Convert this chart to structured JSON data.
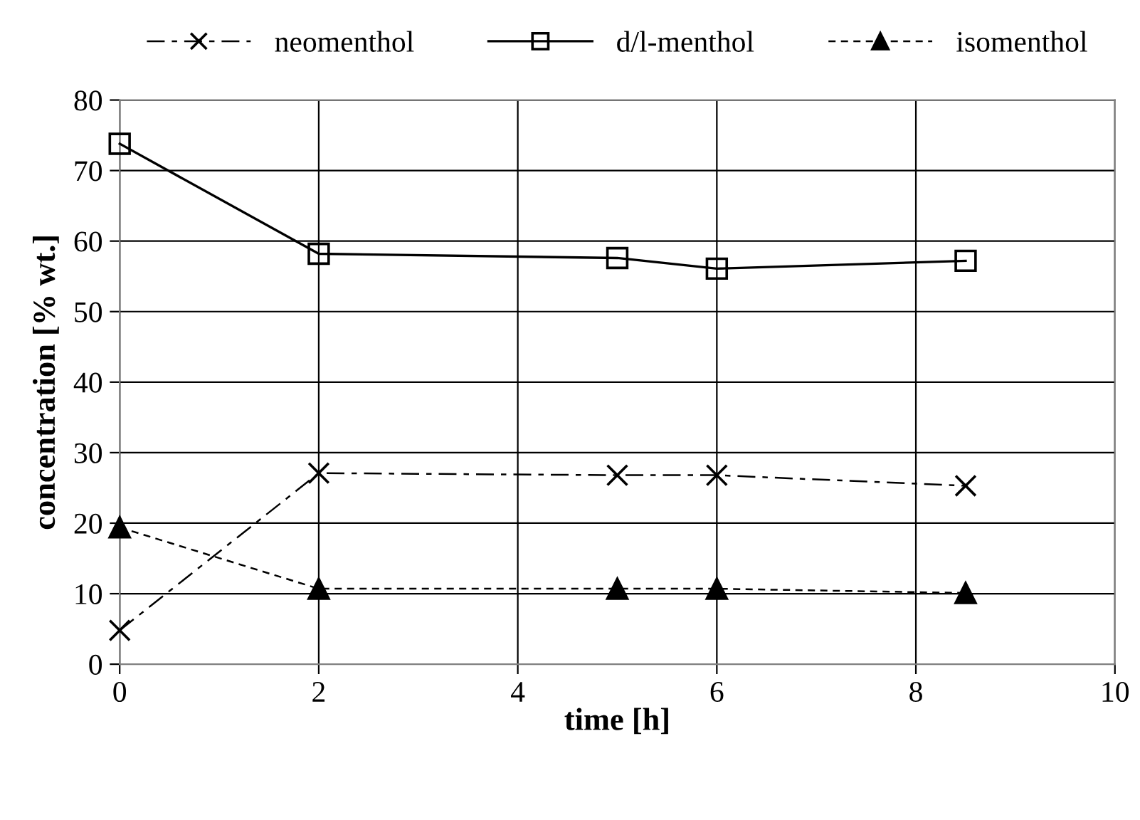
{
  "chart_data": {
    "type": "line",
    "xlabel": "time [h]",
    "ylabel": "concentration [% wt.]",
    "xlim": [
      0,
      10
    ],
    "ylim": [
      0,
      80
    ],
    "xticks": [
      0,
      2,
      4,
      6,
      8,
      10
    ],
    "yticks": [
      0,
      10,
      20,
      30,
      40,
      50,
      60,
      70,
      80
    ],
    "grid": true,
    "legend": "top",
    "series": [
      {
        "name": "neomenthol",
        "color": "#000000",
        "marker": "cross",
        "line_style": "dashed",
        "x": [
          0,
          2,
          5,
          6,
          8.5
        ],
        "values": [
          4.8,
          27.1,
          26.8,
          26.8,
          25.3
        ]
      },
      {
        "name": "d/l-menthol",
        "color": "#000000",
        "marker": "square",
        "line_style": "solid",
        "x": [
          0,
          2,
          5,
          6,
          8.5
        ],
        "values": [
          73.8,
          58.2,
          57.6,
          56.1,
          57.2
        ]
      },
      {
        "name": "isomenthol",
        "color": "#000000",
        "marker": "triangle",
        "line_style": "dotted",
        "x": [
          0,
          2,
          5,
          6,
          8.5
        ],
        "values": [
          19.4,
          10.7,
          10.7,
          10.7,
          10.1
        ]
      }
    ]
  }
}
